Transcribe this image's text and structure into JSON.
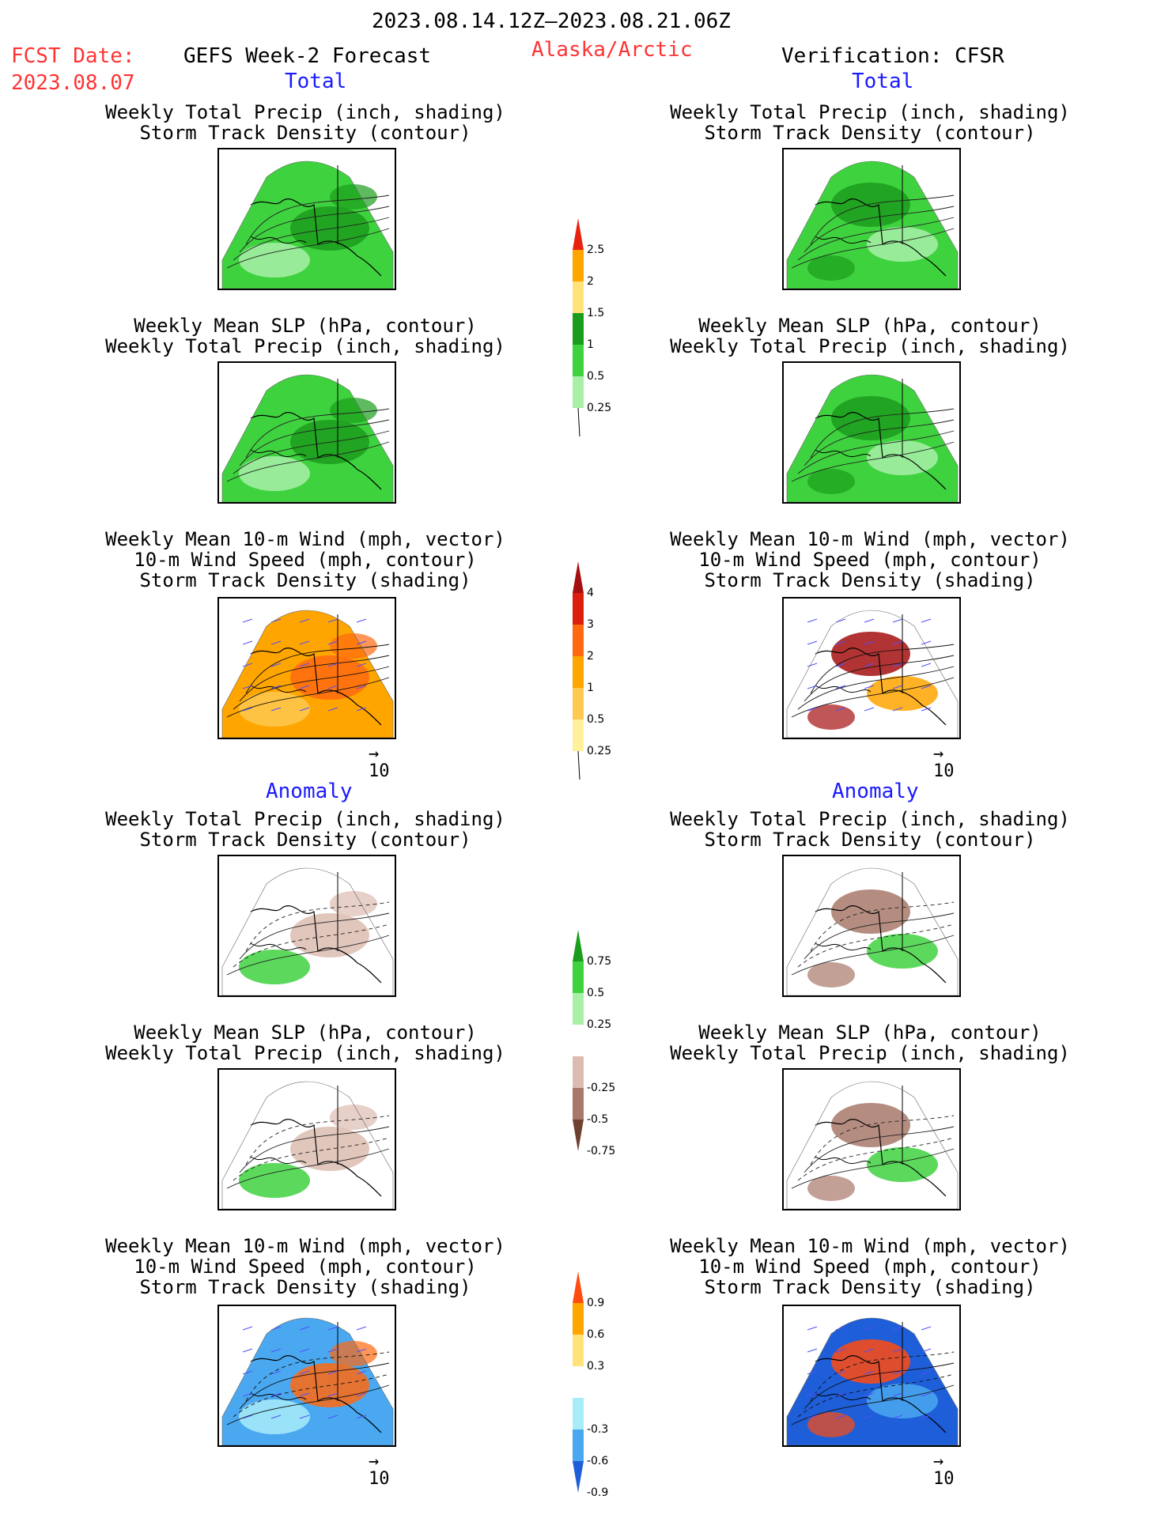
{
  "header": {
    "date_range": "2023.08.14.12Z–2023.08.21.06Z",
    "fcst_label": "FCST Date:",
    "fcst_date": "2023.08.07",
    "left_title": "GEFS Week-2 Forecast",
    "region": "Alaska/Arctic",
    "right_title": "Verification: CFSR"
  },
  "sections": {
    "total": "Total",
    "anomaly": "Anomaly"
  },
  "panel_titles": {
    "precip_storm": [
      "Weekly Total Precip (inch, shading)",
      "Storm Track Density (contour)"
    ],
    "slp_precip": [
      "Weekly Mean SLP (hPa, contour)",
      "Weekly Total Precip (inch, shading)"
    ],
    "wind_storm": [
      "Weekly Mean 10-m Wind (mph, vector)",
      "10-m Wind Speed (mph, contour)",
      "Storm Track Density (shading)"
    ]
  },
  "vector_ref": "10",
  "colorbars": {
    "precip_total": {
      "labels": [
        "2.5",
        "2",
        "1.5",
        "1",
        "0.5",
        "0.25"
      ],
      "colors": [
        "#e8220f",
        "#ffa500",
        "#ffe27a",
        "#1c9c1c",
        "#3fd23f",
        "#a8f0a8"
      ]
    },
    "storm_total": {
      "labels": [
        "4",
        "3",
        "2",
        "1",
        "0.5",
        "0.25"
      ],
      "colors": [
        "#a50f0f",
        "#dc1e0f",
        "#ff6a10",
        "#ffa500",
        "#ffc850",
        "#fff09c"
      ]
    },
    "precip_anom": {
      "labels": [
        "0.75",
        "0.5",
        "0.25",
        "-0.25",
        "-0.5",
        "-0.75"
      ],
      "colors": [
        "#1c9c1c",
        "#3fd23f",
        "#a8f0a8",
        "#ffffff",
        "#dcbcb0",
        "#a8786a",
        "#6e4030"
      ]
    },
    "storm_anom": {
      "labels": [
        "0.9",
        "0.6",
        "0.3",
        "-0.3",
        "-0.6",
        "-0.9"
      ],
      "colors": [
        "#ff4a10",
        "#ffa500",
        "#ffe27a",
        "#ffffff",
        "#a8ecf8",
        "#4aa8f0",
        "#1e5ed8"
      ]
    }
  }
}
